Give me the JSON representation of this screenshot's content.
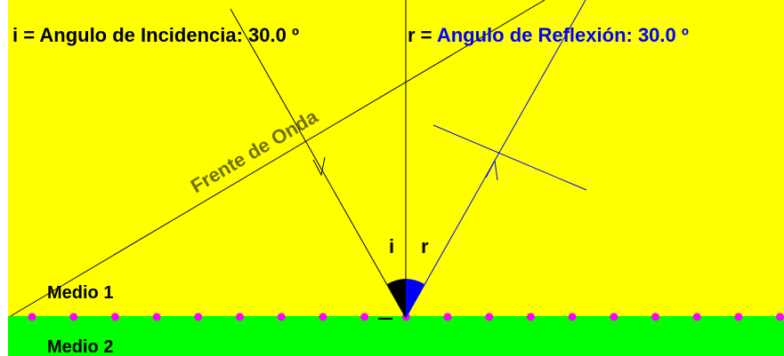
{
  "incidence_label": "i = Angulo de Incidencia: 30.0 º",
  "reflection_label": "r = Angulo de Reflexión: 30.0 º",
  "wavefront_label": "Frente de Onda",
  "angle_i_label": "i",
  "angle_r_label": "r",
  "medium_1_label": "Medio 1",
  "medium_2_label": "Medio 2",
  "incidence_angle_deg": 30.0,
  "reflection_angle_deg": 30.0,
  "colors": {
    "medium_1": "#ffff00",
    "medium_2": "#00ff00",
    "incident_ray": "#000000",
    "reflected_ray": "#0000ff",
    "angle_i_arc": "#000000",
    "angle_r_arc": "#0000ff",
    "interface_dots": "#ff00ff",
    "wavefront_text": "#707000"
  }
}
